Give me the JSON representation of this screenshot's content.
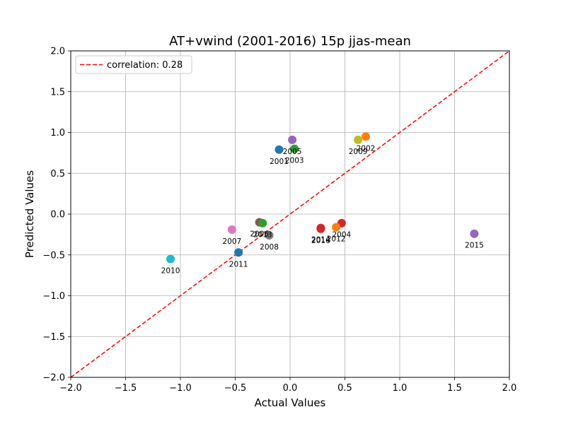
{
  "chart_data": {
    "type": "scatter",
    "title": "AT+vwind (2001-2016) 15p jjas-mean",
    "xlabel": "Actual Values",
    "ylabel": "Predicted Values",
    "xlim": [
      -2.0,
      2.0
    ],
    "ylim": [
      -2.0,
      2.0
    ],
    "x_ticks": [
      "−2.0",
      "−1.5",
      "−1.0",
      "−0.5",
      "0.0",
      "0.5",
      "1.0",
      "1.5",
      "2.0"
    ],
    "y_ticks": [
      "−2.0",
      "−1.5",
      "−1.0",
      "−0.5",
      "0.0",
      "0.5",
      "1.0",
      "1.5",
      "2.0"
    ],
    "grid": true,
    "legend": {
      "placement": "top-left",
      "entries": [
        "correlation: 0.28"
      ]
    },
    "reference_line": {
      "label": "correlation: 0.28",
      "style": "dashed",
      "color": "#ff0000",
      "from": [
        -2.0,
        -2.0
      ],
      "to": [
        2.0,
        2.0
      ]
    },
    "points": [
      {
        "label": "2001",
        "x": -0.1,
        "y": 0.79,
        "color": "#1f77b4"
      },
      {
        "label": "2002",
        "x": 0.69,
        "y": 0.95,
        "color": "#ff7f0e"
      },
      {
        "label": "2003",
        "x": 0.04,
        "y": 0.8,
        "color": "#2ca02c"
      },
      {
        "label": "2004",
        "x": 0.47,
        "y": -0.11,
        "color": "#d62728"
      },
      {
        "label": "2005",
        "x": 0.02,
        "y": 0.91,
        "color": "#9467bd"
      },
      {
        "label": "2006",
        "x": -0.28,
        "y": -0.1,
        "color": "#8c564b"
      },
      {
        "label": "2007",
        "x": -0.53,
        "y": -0.19,
        "color": "#e377c2"
      },
      {
        "label": "2008",
        "x": -0.19,
        "y": -0.26,
        "color": "#7f7f7f"
      },
      {
        "label": "2009",
        "x": 0.62,
        "y": 0.91,
        "color": "#bcbd22"
      },
      {
        "label": "2010",
        "x": -1.09,
        "y": -0.55,
        "color": "#17becf"
      },
      {
        "label": "2011",
        "x": -0.47,
        "y": -0.47,
        "color": "#1f77b4"
      },
      {
        "label": "2012",
        "x": 0.42,
        "y": -0.16,
        "color": "#ff7f0e"
      },
      {
        "label": "2013",
        "x": -0.25,
        "y": -0.11,
        "color": "#2ca02c"
      },
      {
        "label": "2014",
        "x": 0.28,
        "y": -0.17,
        "color": "#d62728"
      },
      {
        "label": "2015",
        "x": 1.68,
        "y": -0.24,
        "color": "#9467bd"
      },
      {
        "label": "2016",
        "x": 0.28,
        "y": -0.18,
        "color": "#d62728"
      }
    ]
  }
}
